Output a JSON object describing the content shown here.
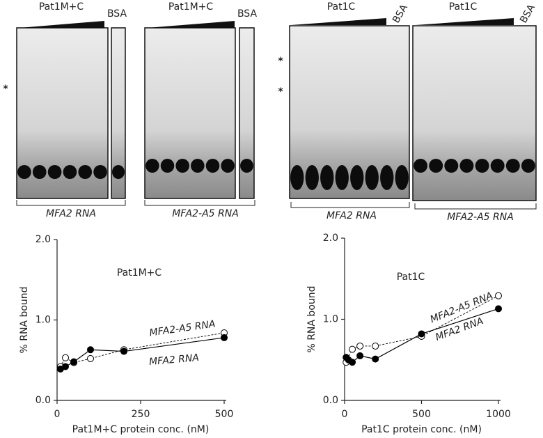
{
  "gels": [
    {
      "header": "Pat1M+C",
      "control": "BSA",
      "rna": "MFA2 RNA",
      "stars": [
        "*"
      ]
    },
    {
      "header": "Pat1M+C",
      "control": "BSA",
      "rna": "MFA2-A5 RNA",
      "stars": []
    },
    {
      "header": "Pat1C",
      "control": "BSA",
      "rna": "MFA2 RNA",
      "stars": [
        "*",
        "*"
      ]
    },
    {
      "header": "Pat1C",
      "control": "BSA",
      "rna": "MFA2-A5 RNA",
      "stars": []
    }
  ],
  "chart_data": [
    {
      "type": "line",
      "title": "Pat1M+C",
      "x_label": "Pat1M+C protein conc. (nM)",
      "y_label": "% RNA bound",
      "xlim": [
        0,
        500
      ],
      "xticks": [
        0,
        250,
        500
      ],
      "ylim": [
        0,
        2
      ],
      "yticks": [
        {
          "value": 0,
          "label": "0.0"
        },
        {
          "value": 1,
          "label": "1.0"
        },
        {
          "value": 2,
          "label": "2.0"
        }
      ],
      "series": [
        {
          "name": "MFA2-A5 RNA",
          "color": "#000000",
          "marker": "open",
          "line_style": "dashed",
          "x": [
            10,
            25,
            50,
            100,
            200,
            500
          ],
          "values": [
            0.42,
            0.53,
            0.47,
            0.52,
            0.63,
            0.84
          ]
        },
        {
          "name": "MFA2 RNA",
          "color": "#000000",
          "marker": "filled",
          "line_style": "solid",
          "x": [
            10,
            25,
            50,
            100,
            200,
            500
          ],
          "values": [
            0.39,
            0.42,
            0.48,
            0.63,
            0.61,
            0.78
          ]
        }
      ]
    },
    {
      "type": "line",
      "title": "Pat1C",
      "x_label": "Pat1C protein conc. (nM)",
      "y_label": "% RNA bound",
      "xlim": [
        0,
        1000
      ],
      "xticks": [
        0,
        500,
        1000
      ],
      "ylim": [
        0,
        2
      ],
      "yticks": [
        {
          "value": 0,
          "label": "0.0"
        },
        {
          "value": 1,
          "label": "1.0"
        },
        {
          "value": 2,
          "label": "2.0"
        }
      ],
      "series": [
        {
          "name": "MFA2-A5 RNA",
          "color": "#000000",
          "marker": "open",
          "line_style": "dashed",
          "x": [
            10,
            50,
            100,
            200,
            500,
            1000
          ],
          "values": [
            0.47,
            0.63,
            0.67,
            0.67,
            0.79,
            1.29
          ]
        },
        {
          "name": "MFA2 RNA",
          "color": "#000000",
          "marker": "filled",
          "line_style": "solid",
          "x": [
            10,
            25,
            50,
            100,
            200,
            500,
            1000
          ],
          "values": [
            0.53,
            0.5,
            0.47,
            0.55,
            0.51,
            0.82,
            1.13
          ]
        }
      ]
    }
  ]
}
